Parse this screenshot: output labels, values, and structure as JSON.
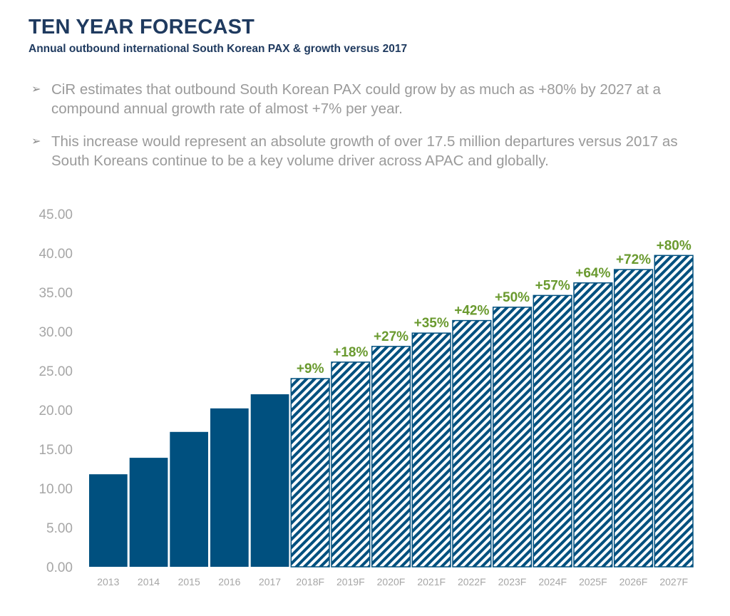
{
  "header": {
    "title": "TEN YEAR FORECAST",
    "subtitle": "Annual outbound international South Korean PAX & growth versus 2017"
  },
  "bullets": [
    "CiR estimates that outbound South Korean PAX could grow by as much as +80% by 2027 at a compound annual growth rate of almost +7% per year.",
    "This increase would represent an absolute growth of over 17.5 million departures versus 2017 as South Koreans continue to be a key volume driver across APAC and globally."
  ],
  "colors": {
    "bar": "#00507f",
    "growth_label": "#6a9a2f",
    "axis_text": "#a6a6a6",
    "title": "#1f3a5f"
  },
  "chart_data": {
    "type": "bar",
    "categories": [
      "2013",
      "2014",
      "2015",
      "2016",
      "2017",
      "2018F",
      "2019F",
      "2020F",
      "2021F",
      "2022F",
      "2023F",
      "2024F",
      "2025F",
      "2026F",
      "2027F"
    ],
    "values": [
      11.8,
      13.9,
      17.2,
      20.2,
      22.0,
      24.0,
      26.1,
      28.1,
      29.8,
      31.4,
      33.1,
      34.6,
      36.2,
      37.9,
      39.7
    ],
    "forecast": [
      false,
      false,
      false,
      false,
      false,
      true,
      true,
      true,
      true,
      true,
      true,
      true,
      true,
      true,
      true
    ],
    "growth_labels": [
      "",
      "",
      "",
      "",
      "",
      "+9%",
      "+18%",
      "+27%",
      "+35%",
      "+42%",
      "+50%",
      "+57%",
      "+64%",
      "+72%",
      "+80%"
    ],
    "ylim": [
      0,
      45
    ],
    "yticks": [
      "0.00",
      "5.00",
      "10.00",
      "15.00",
      "20.00",
      "25.00",
      "30.00",
      "35.00",
      "40.00",
      "45.00"
    ],
    "grid": false,
    "xlabel": "",
    "ylabel": ""
  }
}
